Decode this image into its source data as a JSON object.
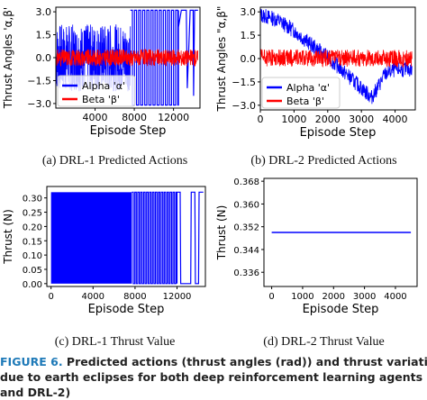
{
  "colors": {
    "blue": "#0000ff",
    "red": "#ff0000",
    "caption_label": "#1f7ab8"
  },
  "caption": {
    "label": "FIGURE 6.",
    "line1": "Predicted actions (thrust angles (rad)) and thrust variations",
    "line2": "due to earth eclipses for both deep reinforcement learning agents (DRL-1",
    "line3": "and DRL-2)"
  },
  "chart_data": [
    {
      "id": "a",
      "subcaption": "(a)  DRL-1 Predicted Actions",
      "type": "line",
      "xlabel": "Episode Step",
      "ylabel": "Thrust Angles 'α,β'",
      "xlim": [
        0,
        14700
      ],
      "ylim": [
        -3.3,
        3.3
      ],
      "xticks": [
        4000,
        8000,
        12000
      ],
      "yticks": [
        -3.0,
        -1.5,
        0.0,
        1.5,
        3.0
      ],
      "ytick_labels": [
        "−3.0",
        "−1.5",
        "0.0",
        "1.5",
        "3.0"
      ],
      "legend": {
        "position": "lower-left",
        "entries": [
          "Alpha 'α'",
          "Beta 'β'"
        ]
      },
      "series": [
        {
          "name": "Alpha 'α'",
          "color": "#0000ff",
          "band": [
            0,
            7600,
            -2.2,
            2.2
          ],
          "square_wave": {
            "from": 7600,
            "to": 12500,
            "period": 420,
            "high": 3.1,
            "low": -3.1
          },
          "tail": [
            [
              12500,
              2.0
            ],
            [
              12800,
              3.1
            ],
            [
              13300,
              3.1
            ],
            [
              13400,
              -2.0
            ],
            [
              13700,
              3.1
            ],
            [
              14000,
              3.1
            ],
            [
              14050,
              -2.5
            ],
            [
              14150,
              3.1
            ],
            [
              14500,
              3.1
            ]
          ]
        },
        {
          "name": "Beta 'β'",
          "color": "#ff0000",
          "band": [
            0,
            14500,
            -0.55,
            0.55
          ]
        }
      ]
    },
    {
      "id": "b",
      "subcaption": "(b)  DRL-2 Predicted Actions",
      "type": "line",
      "xlabel": "Episode Step",
      "ylabel": "Thrust Angles \"α,β\"",
      "xlim": [
        0,
        4600
      ],
      "ylim": [
        -3.3,
        3.3
      ],
      "xticks": [
        0,
        1000,
        2000,
        3000,
        4000
      ],
      "yticks": [
        -3.0,
        -1.5,
        0.0,
        1.5,
        3.0
      ],
      "ytick_labels": [
        "−3.0",
        "−1.5",
        "0.0",
        "1.5",
        "3.0"
      ],
      "legend": {
        "position": "lower-left",
        "entries": [
          "Alpha 'α'",
          "Beta 'β'"
        ]
      },
      "series": [
        {
          "name": "Alpha 'α'",
          "color": "#0000ff",
          "trend": [
            [
              0,
              2.8
            ],
            [
              500,
              2.5
            ],
            [
              1000,
              1.8
            ],
            [
              1500,
              0.9
            ],
            [
              2000,
              0.1
            ],
            [
              2500,
              -0.9
            ],
            [
              3000,
              -1.9
            ],
            [
              3300,
              -2.5
            ],
            [
              3450,
              -2.0
            ],
            [
              3700,
              -1.0
            ],
            [
              4000,
              -0.7
            ],
            [
              4500,
              -0.7
            ]
          ],
          "amplitude": 0.5
        },
        {
          "name": "Beta 'β'",
          "color": "#ff0000",
          "trend": [
            [
              0,
              0.05
            ],
            [
              4500,
              0.0
            ]
          ],
          "amplitude": 0.55
        }
      ]
    },
    {
      "id": "c",
      "subcaption": "(c)  DRL-1 Thrust Value",
      "type": "line",
      "xlabel": "Episode Step",
      "ylabel": "Thrust (N)",
      "xlim": [
        -400,
        14700
      ],
      "ylim": [
        -0.01,
        0.34
      ],
      "xticks": [
        0,
        4000,
        8000,
        12000
      ],
      "yticks": [
        0.0,
        0.05,
        0.1,
        0.15,
        0.2,
        0.25,
        0.3
      ],
      "ytick_labels": [
        "0.00",
        "0.05",
        "0.10",
        "0.15",
        "0.20",
        "0.25",
        "0.30"
      ],
      "series": [
        {
          "name": "Thrust",
          "color": "#0000ff",
          "dense_block": [
            0,
            7700
          ],
          "square_wave": {
            "from": 7700,
            "to": 12000,
            "period": 280,
            "high": 0.32,
            "low": 0.0
          },
          "tail": [
            [
              12000,
              0.32
            ],
            [
              12300,
              0.32
            ],
            [
              12350,
              0.0
            ],
            [
              13300,
              0.0
            ],
            [
              13350,
              0.32
            ],
            [
              13700,
              0.32
            ],
            [
              13750,
              0.0
            ],
            [
              14050,
              0.0
            ],
            [
              14100,
              0.32
            ],
            [
              14500,
              0.32
            ]
          ]
        }
      ]
    },
    {
      "id": "d",
      "subcaption": "(d)  DRL-2 Thrust Value",
      "type": "line",
      "xlabel": "Episode Step",
      "ylabel": "Thrust (N)",
      "xlim": [
        -250,
        4700
      ],
      "ylim": [
        0.331,
        0.369
      ],
      "xticks": [
        0,
        1000,
        2000,
        3000,
        4000
      ],
      "yticks": [
        0.336,
        0.344,
        0.352,
        0.36,
        0.368
      ],
      "ytick_labels": [
        "0.336",
        "0.344",
        "0.352",
        "0.360",
        "0.368"
      ],
      "series": [
        {
          "name": "Thrust",
          "color": "#0000ff",
          "line": [
            [
              0,
              0.35
            ],
            [
              4500,
              0.35
            ]
          ]
        }
      ]
    }
  ]
}
